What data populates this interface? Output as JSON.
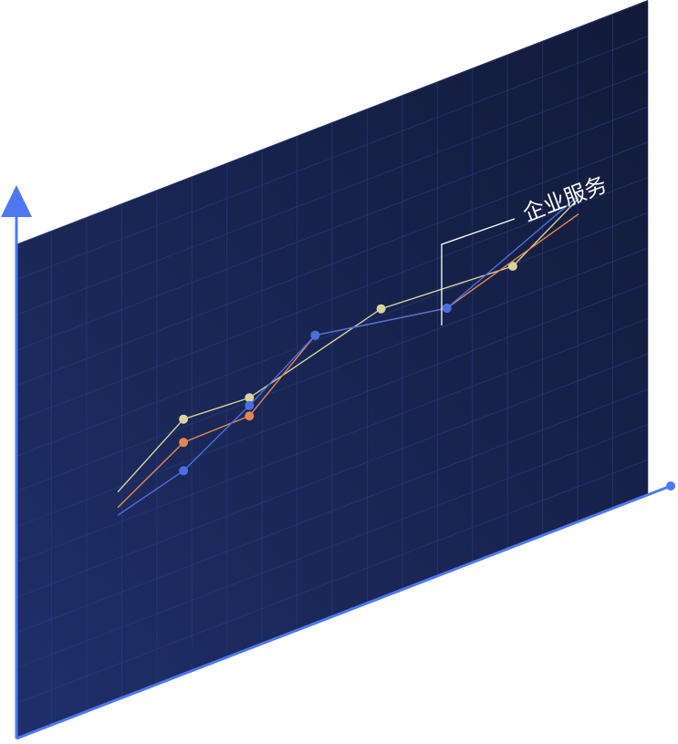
{
  "chart_data": {
    "type": "line",
    "title": "",
    "xlabel": "",
    "ylabel": "",
    "grid": true,
    "categories": [
      "",
      "",
      "",
      "",
      "",
      "",
      "",
      ""
    ],
    "series": [
      {
        "color": "#d9d39c",
        "values": [
          10,
          28,
          26,
          null,
          40,
          null,
          36,
          52
        ]
      },
      {
        "color": "#e4874f",
        "values": [
          4,
          19,
          19,
          40,
          null,
          30,
          null,
          46
        ]
      },
      {
        "color": "#4a6fe0",
        "values": [
          1,
          8,
          23,
          40,
          null,
          30,
          null,
          53
        ]
      }
    ],
    "annotations": [
      {
        "text": "企业服务"
      }
    ],
    "xlim": [
      0,
      7
    ],
    "ylim": [
      0,
      60
    ]
  },
  "colors": {
    "panel_start": "#1f2f6a",
    "panel_end": "#121a38",
    "grid": "#2c3e86",
    "axis": "#4f78f0"
  }
}
